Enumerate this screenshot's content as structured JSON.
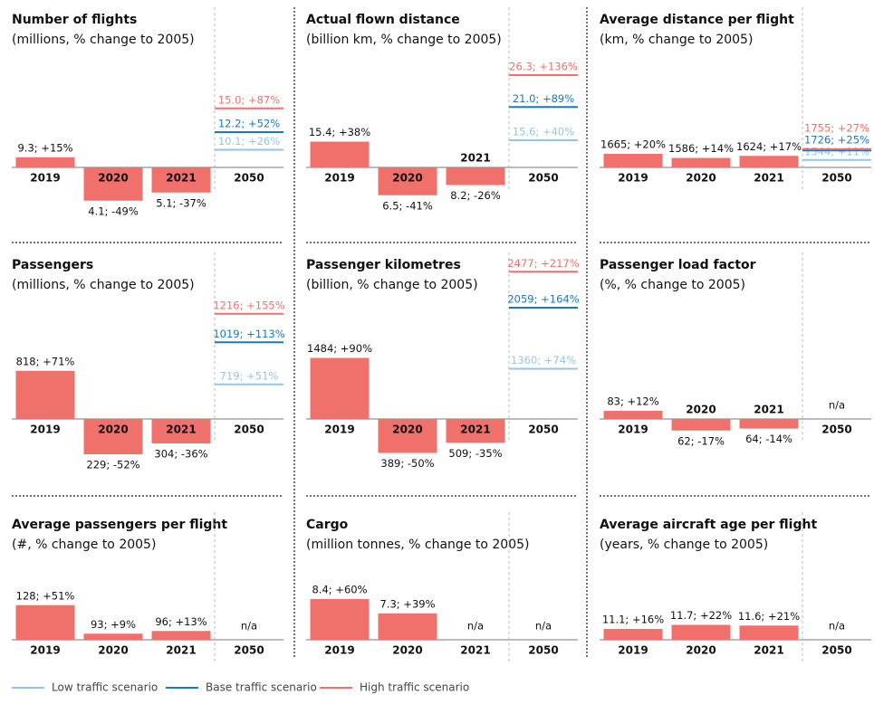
{
  "chart_data": [
    {
      "type": "bar",
      "title": "Number of flights",
      "subtitle": "(millions, % change to 2005)",
      "categories": [
        "2019",
        "2020",
        "2021",
        "2050"
      ],
      "values": [
        15,
        -49,
        -37,
        null
      ],
      "value_labels": [
        "9.3; +15%",
        "4.1; -49%",
        "5.1; -37%",
        null
      ],
      "scenarios": {
        "values": [
          26,
          52,
          87
        ],
        "value_labels": [
          "10.1; +26%",
          "12.2; +52%",
          "15.0; +87%"
        ]
      },
      "color": "#f0706c"
    },
    {
      "type": "bar",
      "title": "Actual flown distance",
      "subtitle": "(billion km, % change to 2005)",
      "categories": [
        "2019",
        "2020",
        "2021",
        "2050"
      ],
      "values": [
        38,
        -41,
        -26,
        null
      ],
      "value_labels": [
        "15.4; +38%",
        "6.5; -41%",
        "8.2; -26%",
        null
      ],
      "scenarios": {
        "values": [
          40,
          89,
          136
        ],
        "value_labels": [
          "15.6; +40%",
          "21.0; +89%",
          "26.3; +136%"
        ]
      },
      "color": "#f0706c"
    },
    {
      "type": "bar",
      "title": "Average distance per flight",
      "subtitle": "(km, % change to 2005)",
      "categories": [
        "2019",
        "2020",
        "2021",
        "2050"
      ],
      "values": [
        20,
        14,
        17,
        null
      ],
      "value_labels": [
        "1665; +20%",
        "1586; +14%",
        "1624; +17%",
        null
      ],
      "scenarios": {
        "values": [
          11,
          25,
          27
        ],
        "value_labels": [
          "1544; +11%",
          "1726; +25%",
          "1755; +27%"
        ]
      },
      "color": "#f0706c"
    },
    {
      "type": "bar",
      "title": "Passengers",
      "subtitle": "(millions, % change to 2005)",
      "categories": [
        "2019",
        "2020",
        "2021",
        "2050"
      ],
      "values": [
        71,
        -52,
        -36,
        null
      ],
      "value_labels": [
        "818; +71%",
        "229; -52%",
        "304; -36%",
        null
      ],
      "scenarios": {
        "values": [
          51,
          113,
          155
        ],
        "value_labels": [
          "719; +51%",
          "1019; +113%",
          "1216; +155%"
        ]
      },
      "color": "#f0706c"
    },
    {
      "type": "bar",
      "title": "Passenger kilometres",
      "subtitle": "(billion, % change to 2005)",
      "categories": [
        "2019",
        "2020",
        "2021",
        "2050"
      ],
      "values": [
        90,
        -50,
        -35,
        null
      ],
      "value_labels": [
        "1484; +90%",
        "389; -50%",
        "509; -35%",
        null
      ],
      "scenarios": {
        "values": [
          74,
          164,
          217
        ],
        "value_labels": [
          "1360; +74%",
          "2059; +164%",
          "2477; +217%"
        ]
      },
      "color": "#f0706c"
    },
    {
      "type": "bar",
      "title": "Passenger load factor",
      "subtitle": "(%, % change to 2005)",
      "categories": [
        "2019",
        "2020",
        "2021",
        "2050"
      ],
      "values": [
        12,
        -17,
        -14,
        null
      ],
      "value_labels": [
        "83; +12%",
        "62; -17%",
        "64; -14%",
        "n/a"
      ],
      "color": "#f0706c"
    },
    {
      "type": "bar",
      "title": "Average passengers per flight",
      "subtitle": "(#, % change to 2005)",
      "categories": [
        "2019",
        "2020",
        "2021",
        "2050"
      ],
      "values": [
        51,
        9,
        13,
        null
      ],
      "value_labels": [
        "128; +51%",
        "93; +9%",
        "96; +13%",
        "n/a"
      ],
      "color": "#f0706c"
    },
    {
      "type": "bar",
      "title": "Cargo",
      "subtitle": "(million tonnes, % change to 2005)",
      "categories": [
        "2019",
        "2020",
        "2021",
        "2050"
      ],
      "values": [
        60,
        39,
        null,
        null
      ],
      "value_labels": [
        "8.4; +60%",
        "7.3; +39%",
        "n/a",
        "n/a"
      ],
      "color": "#f0706c"
    },
    {
      "type": "bar",
      "title": "Average aircraft age per flight",
      "subtitle": "(years, % change to 2005)",
      "categories": [
        "2019",
        "2020",
        "2021",
        "2050"
      ],
      "values": [
        16,
        22,
        21,
        null
      ],
      "value_labels": [
        "11.1; +16%",
        "11.7; +22%",
        "11.6; +21%",
        "n/a"
      ],
      "color": "#f0706c"
    }
  ],
  "legend": [
    {
      "name": "Low traffic scenario",
      "color": "#93c6e6"
    },
    {
      "name": "Base traffic scenario",
      "color": "#1b78bd"
    },
    {
      "name": "High traffic scenario",
      "color": "#f0706c"
    }
  ]
}
